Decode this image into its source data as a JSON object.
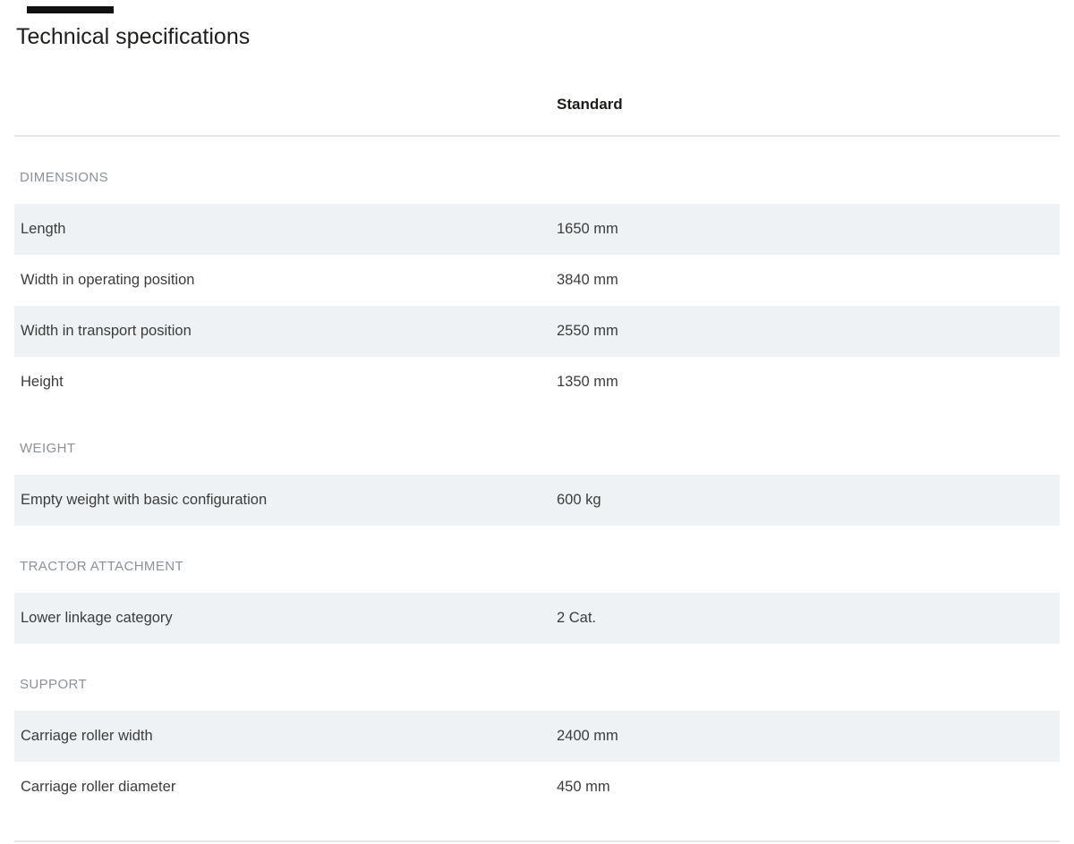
{
  "page_title": "Technical specifications",
  "table": {
    "column_header": "Standard",
    "sections": [
      {
        "title": "DIMENSIONS",
        "rows": [
          {
            "label": "Length",
            "value": "1650 mm"
          },
          {
            "label": "Width in operating position",
            "value": "3840 mm"
          },
          {
            "label": "Width in transport position",
            "value": "2550 mm"
          },
          {
            "label": "Height",
            "value": "1350 mm"
          }
        ]
      },
      {
        "title": "WEIGHT",
        "rows": [
          {
            "label": "Empty weight with basic configuration",
            "value": "600 kg"
          }
        ]
      },
      {
        "title": "TRACTOR ATTACHMENT",
        "rows": [
          {
            "label": "Lower linkage category",
            "value": "2 Cat."
          }
        ]
      },
      {
        "title": "SUPPORT",
        "rows": [
          {
            "label": "Carriage roller width",
            "value": "2400 mm"
          },
          {
            "label": "Carriage roller diameter",
            "value": "450 mm"
          }
        ]
      }
    ]
  },
  "colors": {
    "row_alt_bg": "#eef2f5",
    "section_label": "#8a9199",
    "divider": "#e4e6e8",
    "row_text": "#3c3c3b",
    "title_text": "#1d1d1b",
    "top_bar": "#111111"
  }
}
